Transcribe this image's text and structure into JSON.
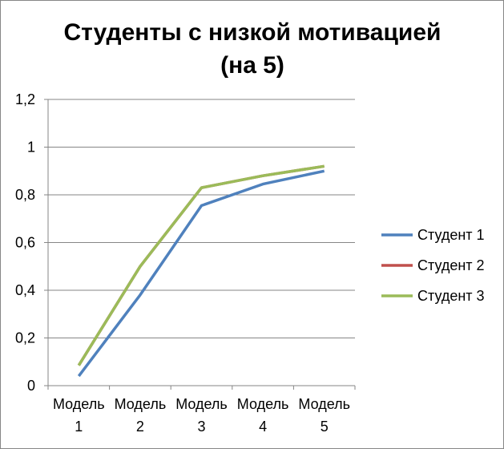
{
  "chart_data": {
    "type": "line",
    "title_lines": [
      "Студенты с низкой мотивацией",
      "(на 5)"
    ],
    "categories": [
      [
        "Модель",
        "1"
      ],
      [
        "Модель",
        "2"
      ],
      [
        "Модель",
        "3"
      ],
      [
        "Модель",
        "4"
      ],
      [
        "Модель",
        "5"
      ]
    ],
    "ylim": [
      0,
      1.2
    ],
    "yticks": [
      {
        "value": 0,
        "label": "0"
      },
      {
        "value": 0.2,
        "label": "0,2"
      },
      {
        "value": 0.4,
        "label": "0,4"
      },
      {
        "value": 0.6,
        "label": "0,6"
      },
      {
        "value": 0.8,
        "label": "0,8"
      },
      {
        "value": 1.0,
        "label": "1"
      },
      {
        "value": 1.2,
        "label": "1,2"
      }
    ],
    "grid": true,
    "legend_position": "right",
    "series": [
      {
        "name": "Студент 1",
        "color": "#4F81BD",
        "values": [
          0.04,
          0.38,
          0.755,
          0.845,
          0.9
        ]
      },
      {
        "name": "Студент 2",
        "color": "#C0504D",
        "values": [
          0.085,
          0.5,
          0.83,
          0.88,
          0.92
        ]
      },
      {
        "name": "Студент 3",
        "color": "#9BBB59",
        "values": [
          0.085,
          0.5,
          0.83,
          0.88,
          0.92
        ]
      }
    ]
  }
}
